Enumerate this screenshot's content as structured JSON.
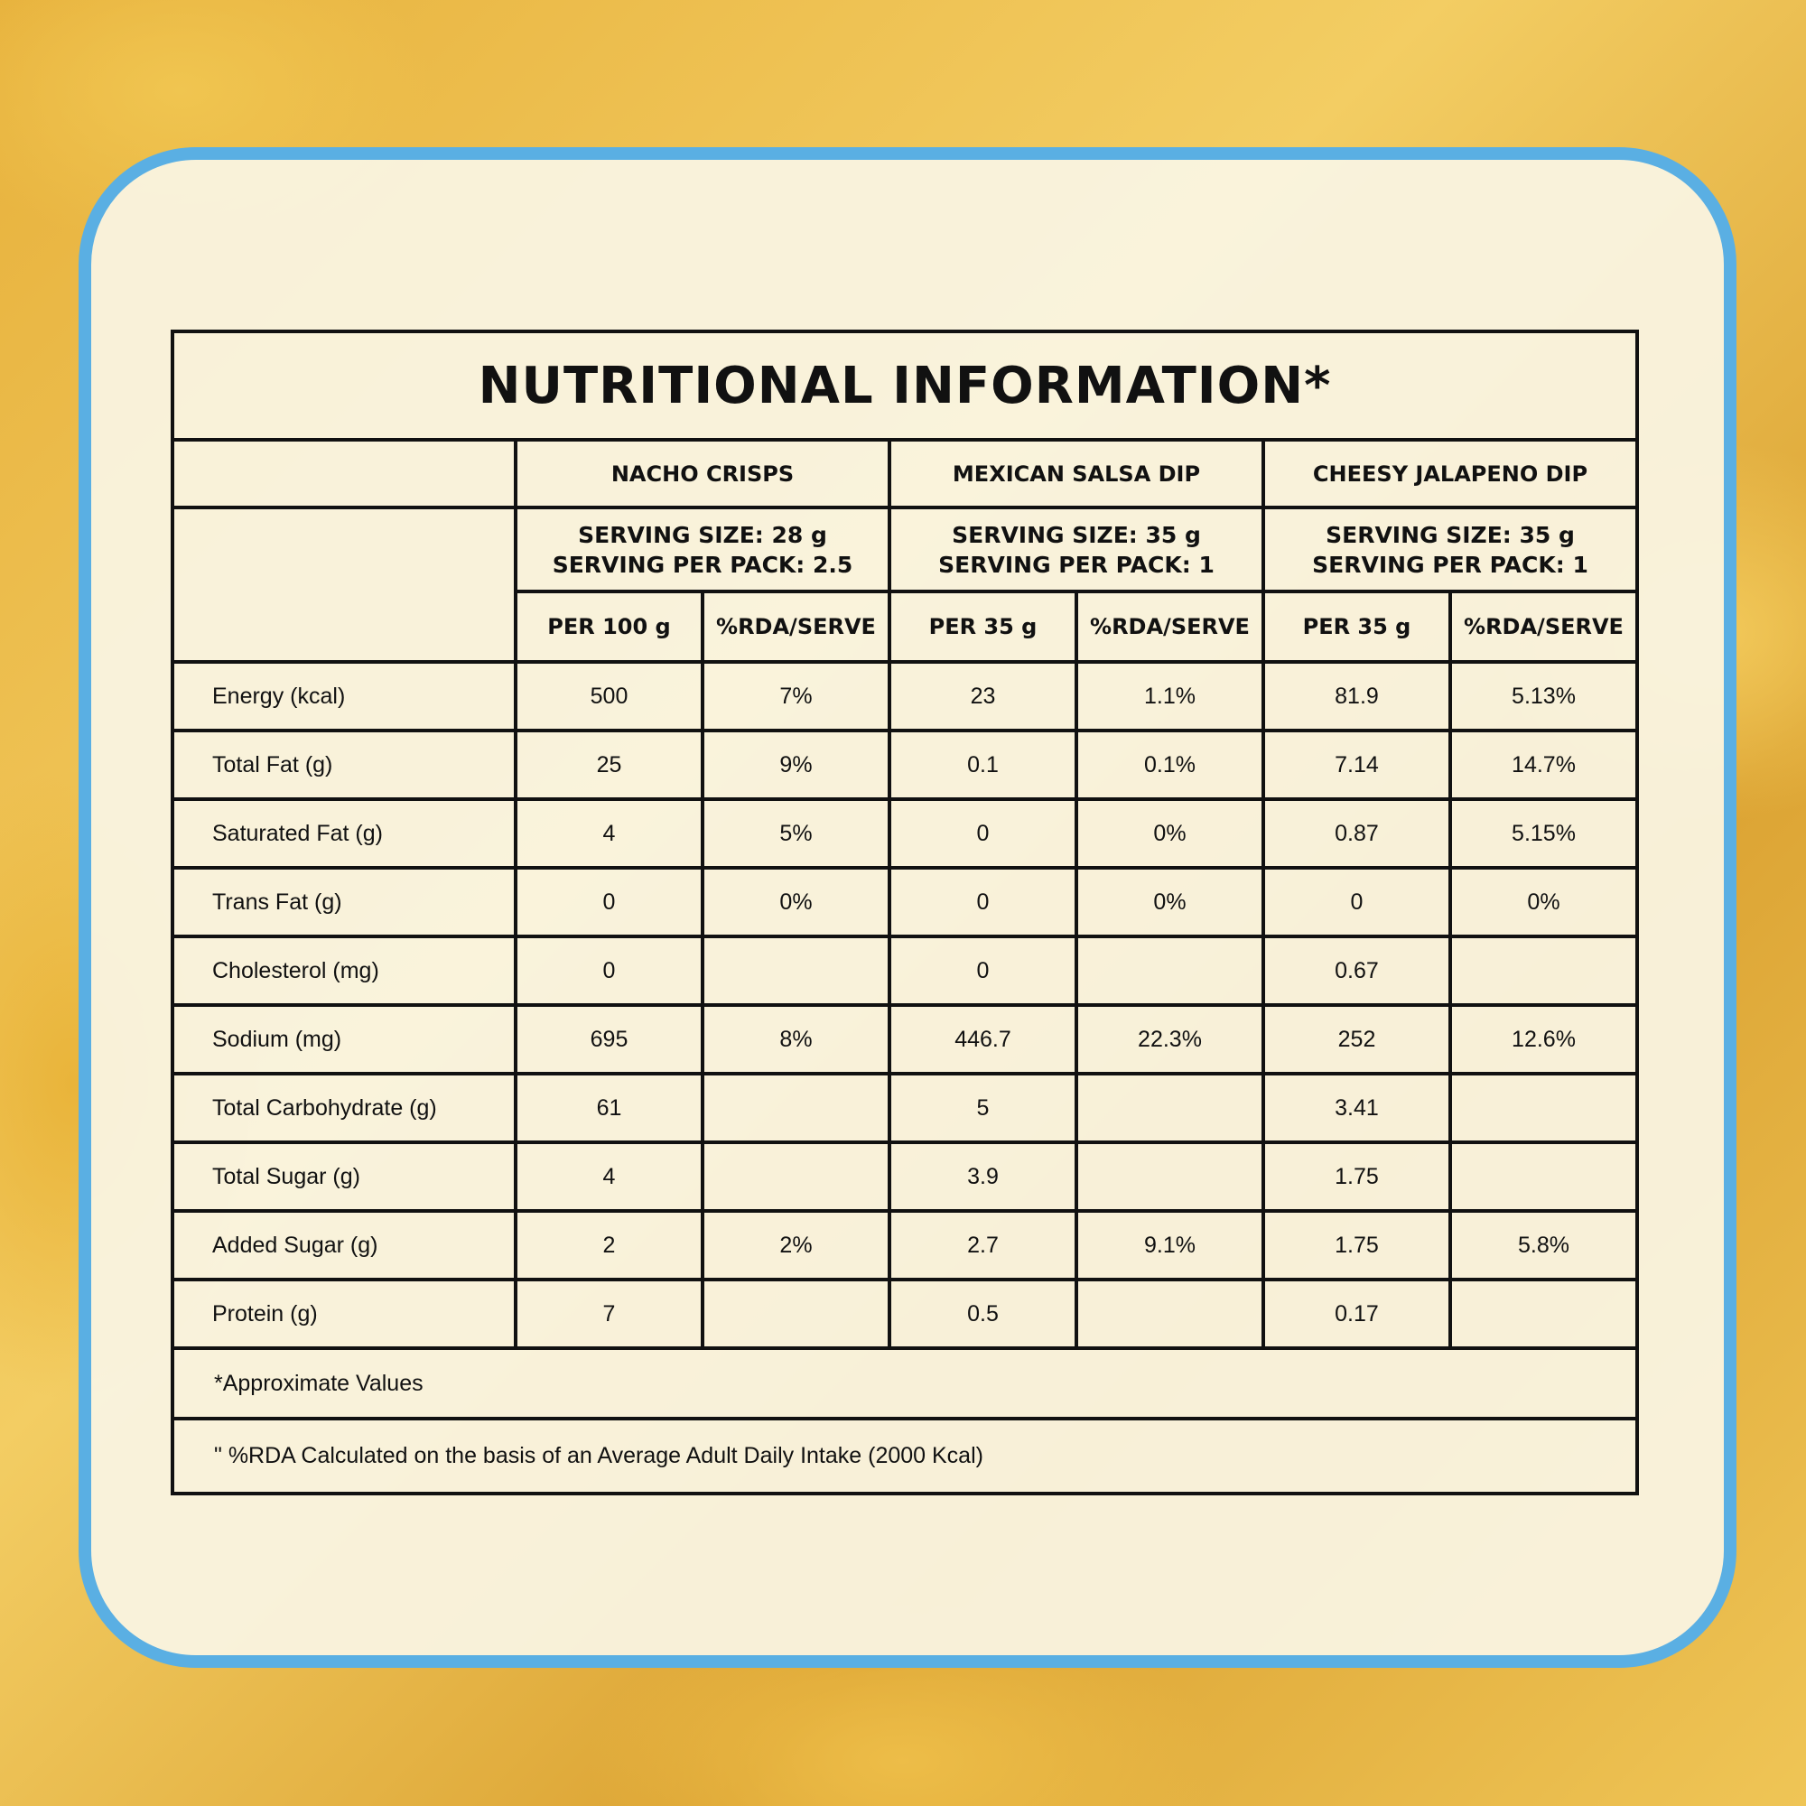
{
  "title": "NUTRITIONAL INFORMATION*",
  "products": [
    {
      "name": "NACHO CRISPS",
      "serving_size": "SERVING SIZE: 28 g",
      "serving_per_pack": "SERVING PER PACK: 2.5",
      "columns": [
        "PER 100 g",
        "%RDA/SERVE"
      ]
    },
    {
      "name": "MEXICAN SALSA DIP",
      "serving_size": "SERVING SIZE: 35 g",
      "serving_per_pack": "SERVING PER PACK: 1",
      "columns": [
        "PER 35 g",
        "%RDA/SERVE"
      ]
    },
    {
      "name": "CHEESY JALAPENO DIP",
      "serving_size": "SERVING SIZE: 35 g",
      "serving_per_pack": "SERVING PER PACK: 1",
      "columns": [
        "PER 35 g",
        "%RDA/SERVE"
      ]
    }
  ],
  "rows": [
    {
      "label": "Energy (kcal)",
      "values": [
        "500",
        "7%",
        "23",
        "1.1%",
        "81.9",
        "5.13%"
      ]
    },
    {
      "label": "Total Fat (g)",
      "values": [
        "25",
        "9%",
        "0.1",
        "0.1%",
        "7.14",
        "14.7%"
      ]
    },
    {
      "label": "Saturated Fat (g)",
      "values": [
        "4",
        "5%",
        "0",
        "0%",
        "0.87",
        "5.15%"
      ]
    },
    {
      "label": "Trans Fat (g)",
      "values": [
        "0",
        "0%",
        "0",
        "0%",
        "0",
        "0%"
      ]
    },
    {
      "label": "Cholesterol (mg)",
      "values": [
        "0",
        null,
        "0",
        null,
        "0.67",
        null
      ]
    },
    {
      "label": "Sodium (mg)",
      "values": [
        "695",
        "8%",
        "446.7",
        "22.3%",
        "252",
        "12.6%"
      ]
    },
    {
      "label": "Total Carbohydrate  (g)",
      "values": [
        "61",
        null,
        "5",
        null,
        "3.41",
        null
      ]
    },
    {
      "label": "Total Sugar (g)",
      "values": [
        "4",
        null,
        "3.9",
        null,
        "1.75",
        null
      ]
    },
    {
      "label": "Added Sugar (g)",
      "values": [
        "2",
        "2%",
        "2.7",
        "9.1%",
        "1.75",
        "5.8%"
      ]
    },
    {
      "label": "Protein (g)",
      "values": [
        "7",
        null,
        "0.5",
        null,
        "0.17",
        null
      ]
    }
  ],
  "footnotes": [
    "*Approximate Values",
    "\" %RDA Calculated on the basis of an Average Adult Daily Intake (2000 Kcal)"
  ]
}
